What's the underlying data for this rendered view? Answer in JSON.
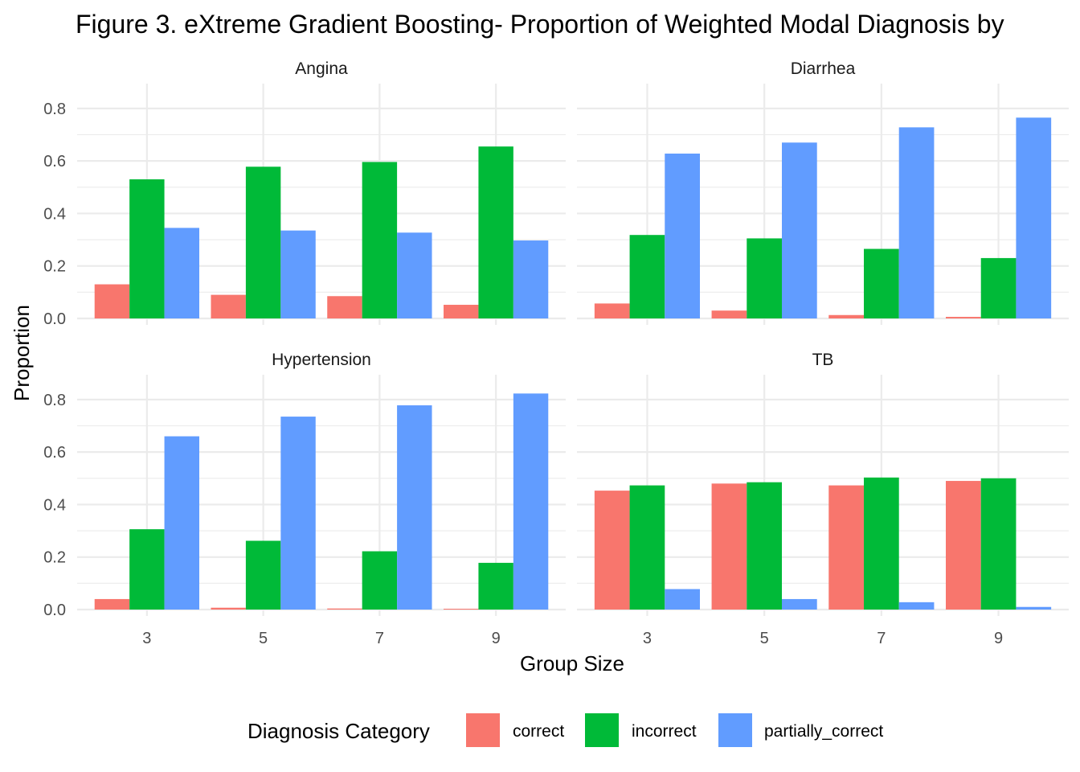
{
  "chart_data": {
    "type": "bar",
    "title": "Figure 3. eXtreme Gradient Boosting- Proportion of Weighted Modal Diagnosis by",
    "xlabel": "Group Size",
    "ylabel": "Proportion",
    "categories": [
      "3",
      "5",
      "7",
      "9"
    ],
    "ylim": [
      0,
      0.87
    ],
    "yticks": [
      "0.0",
      "0.2",
      "0.4",
      "0.6",
      "0.8"
    ],
    "grid": true,
    "legend": {
      "title": "Diagnosis Category",
      "position": "bottom",
      "entries": [
        "correct",
        "incorrect",
        "partially_correct"
      ]
    },
    "colors": {
      "correct": "#F8766D",
      "incorrect": "#00BA38",
      "partially_correct": "#619CFF"
    },
    "panels": [
      {
        "name": "Angina",
        "series": [
          {
            "name": "correct",
            "values": [
              0.13,
              0.09,
              0.085,
              0.052
            ]
          },
          {
            "name": "incorrect",
            "values": [
              0.53,
              0.578,
              0.596,
              0.655
            ]
          },
          {
            "name": "partially_correct",
            "values": [
              0.345,
              0.335,
              0.327,
              0.297
            ]
          }
        ]
      },
      {
        "name": "Diarrhea",
        "series": [
          {
            "name": "correct",
            "values": [
              0.057,
              0.03,
              0.013,
              0.006
            ]
          },
          {
            "name": "incorrect",
            "values": [
              0.318,
              0.305,
              0.265,
              0.23
            ]
          },
          {
            "name": "partially_correct",
            "values": [
              0.628,
              0.67,
              0.728,
              0.765
            ]
          }
        ]
      },
      {
        "name": "Hypertension",
        "series": [
          {
            "name": "correct",
            "values": [
              0.04,
              0.007,
              0.004,
              0.003
            ]
          },
          {
            "name": "incorrect",
            "values": [
              0.306,
              0.262,
              0.222,
              0.178
            ]
          },
          {
            "name": "partially_correct",
            "values": [
              0.66,
              0.735,
              0.778,
              0.823
            ]
          }
        ]
      },
      {
        "name": "TB",
        "series": [
          {
            "name": "correct",
            "values": [
              0.453,
              0.48,
              0.473,
              0.49
            ]
          },
          {
            "name": "incorrect",
            "values": [
              0.473,
              0.485,
              0.503,
              0.5
            ]
          },
          {
            "name": "partially_correct",
            "values": [
              0.078,
              0.04,
              0.028,
              0.01
            ]
          }
        ]
      }
    ]
  }
}
